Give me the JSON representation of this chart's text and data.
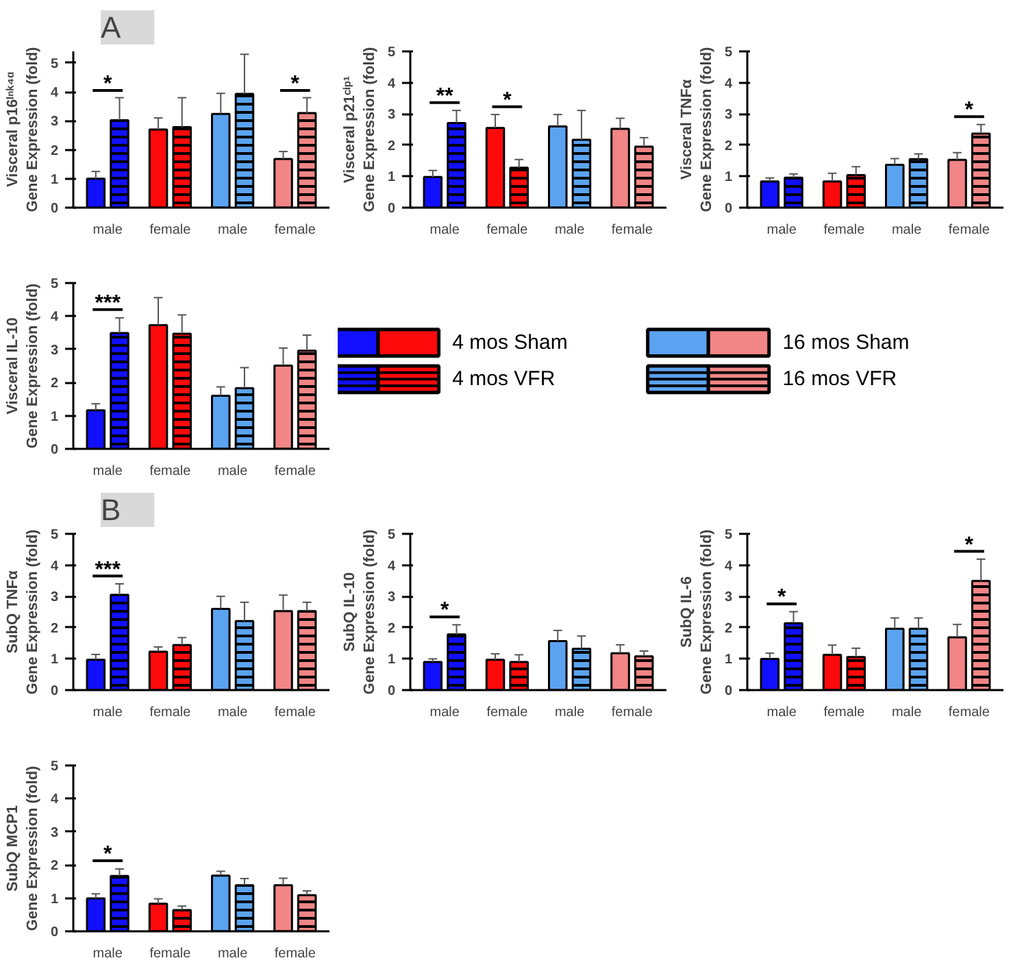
{
  "chart_data": [
    {
      "type": "bar",
      "ylabel": "Visceral p16ᴵⁿᵏ⁴ᵅ\nGene Expression (fold)",
      "categories": [
        "male",
        "female",
        "male",
        "female"
      ],
      "ylim": [
        0,
        5.4
      ],
      "yticks": [
        0,
        1,
        2,
        3,
        4,
        5
      ],
      "annotations": [
        "A",
        "*",
        "*"
      ],
      "series": [
        {
          "colors": [
            "#1010ff",
            "#ff0a0a",
            null,
            null
          ],
          "values": [
            1.0,
            2.7,
            null,
            null
          ],
          "errors": [
            0.25,
            0.4,
            null,
            null
          ]
        },
        {
          "colors": [
            "#1010ff",
            "#ff0a0a",
            null,
            null
          ],
          "values": [
            3.02,
            2.78,
            null,
            null
          ],
          "errors": [
            0.78,
            1.02,
            null,
            null
          ]
        },
        {
          "colors": [
            null,
            null,
            "#5ba3f0",
            "#f28585"
          ],
          "values": [
            null,
            null,
            3.24,
            1.68
          ],
          "errors": [
            null,
            null,
            0.71,
            0.26
          ]
        },
        {
          "colors": [
            null,
            null,
            "#5ba3f0",
            "#f28585"
          ],
          "values": [
            null,
            null,
            3.93,
            3.27
          ],
          "errors": [
            null,
            null,
            1.37,
            0.53
          ]
        }
      ]
    },
    {
      "type": "bar",
      "ylabel": "Visceral p21ᶜⁱᵖ¹\nGene Expression (fold)",
      "categories": [
        "male",
        "female",
        "male",
        "female"
      ],
      "ylim": [
        0,
        5
      ],
      "yticks": [
        0,
        1,
        2,
        3,
        4,
        5
      ],
      "annotations": [
        "**",
        "*"
      ],
      "series": [
        {
          "colors": [
            "#1010ff",
            "#ff0a0a",
            null,
            null
          ],
          "values": [
            0.98,
            2.55,
            null,
            null
          ],
          "errors": [
            0.21,
            0.43,
            null,
            null
          ]
        },
        {
          "colors": [
            "#1010ff",
            "#ff0a0a",
            null,
            null
          ],
          "values": [
            2.71,
            1.28,
            null,
            null
          ],
          "errors": [
            0.4,
            0.26,
            null,
            null
          ]
        },
        {
          "colors": [
            null,
            null,
            "#5ba3f0",
            "#f28585"
          ],
          "values": [
            null,
            null,
            2.6,
            2.52
          ],
          "errors": [
            null,
            null,
            0.38,
            0.34
          ]
        },
        {
          "colors": [
            null,
            null,
            "#5ba3f0",
            "#f28585"
          ],
          "values": [
            null,
            null,
            2.17,
            1.95
          ],
          "errors": [
            null,
            null,
            0.94,
            0.29
          ]
        }
      ]
    },
    {
      "type": "bar",
      "ylabel": "Visceral TNFα\nGene Expression (fold)",
      "categories": [
        "male",
        "female",
        "male",
        "female"
      ],
      "ylim": [
        0,
        5
      ],
      "yticks": [
        0,
        1,
        2,
        3,
        4,
        5
      ],
      "annotations": [
        "*"
      ],
      "series": [
        {
          "colors": [
            "#1010ff",
            "#ff0a0a",
            null,
            null
          ],
          "values": [
            0.84,
            0.84,
            null,
            null
          ],
          "errors": [
            0.11,
            0.26,
            null,
            null
          ]
        },
        {
          "colors": [
            "#1010ff",
            "#ff0a0a",
            null,
            null
          ],
          "values": [
            0.96,
            1.04,
            null,
            null
          ],
          "errors": [
            0.12,
            0.27,
            null,
            null
          ]
        },
        {
          "colors": [
            null,
            null,
            "#5ba3f0",
            "#f28585"
          ],
          "values": [
            null,
            null,
            1.37,
            1.53
          ],
          "errors": [
            null,
            null,
            0.2,
            0.23
          ]
        },
        {
          "colors": [
            null,
            null,
            "#5ba3f0",
            "#f28585"
          ],
          "values": [
            null,
            null,
            1.55,
            2.37
          ],
          "errors": [
            null,
            null,
            0.17,
            0.29
          ]
        }
      ]
    },
    {
      "type": "bar",
      "ylabel": "Visceral IL-10\nGene Expression (fold)",
      "categories": [
        "male",
        "female",
        "male",
        "female"
      ],
      "ylim": [
        0,
        5
      ],
      "yticks": [
        0,
        1,
        2,
        3,
        4,
        5
      ],
      "legend": "right",
      "annotations": [
        "***"
      ],
      "series": [
        {
          "name": "4 mos Sham",
          "colors": [
            "#1010ff",
            "#ff0a0a",
            null,
            null
          ],
          "values": [
            1.16,
            3.73,
            null,
            null
          ],
          "errors": [
            0.2,
            0.83,
            null,
            null
          ]
        },
        {
          "name": "4 mos VFR",
          "colors": [
            "#1010ff",
            "#ff0a0a",
            null,
            null
          ],
          "values": [
            3.49,
            3.47,
            null,
            null
          ],
          "errors": [
            0.46,
            0.57,
            null,
            null
          ]
        },
        {
          "name": "16 mos Sham",
          "colors": [
            null,
            null,
            "#5ba3f0",
            "#f28585"
          ],
          "values": [
            null,
            null,
            1.6,
            2.51
          ],
          "errors": [
            null,
            null,
            0.27,
            0.53
          ]
        },
        {
          "name": "16 mos VFR",
          "colors": [
            null,
            null,
            "#5ba3f0",
            "#f28585"
          ],
          "values": [
            null,
            null,
            1.83,
            2.96
          ],
          "errors": [
            null,
            null,
            0.62,
            0.47
          ]
        }
      ]
    },
    {
      "type": "bar",
      "ylabel": "SubQ TNFα\nGene Expression (fold)",
      "categories": [
        "male",
        "female",
        "male",
        "female"
      ],
      "ylim": [
        0,
        5
      ],
      "yticks": [
        0,
        1,
        2,
        3,
        4,
        5
      ],
      "annotations": [
        "B",
        "***"
      ],
      "series": [
        {
          "colors": [
            "#1010ff",
            "#ff0a0a",
            null,
            null
          ],
          "values": [
            0.97,
            1.23,
            null,
            null
          ],
          "errors": [
            0.17,
            0.15,
            null,
            null
          ]
        },
        {
          "colors": [
            "#1010ff",
            "#ff0a0a",
            null,
            null
          ],
          "values": [
            3.05,
            1.44,
            null,
            null
          ],
          "errors": [
            0.35,
            0.24,
            null,
            null
          ]
        },
        {
          "colors": [
            null,
            null,
            "#5ba3f0",
            "#f28585"
          ],
          "values": [
            null,
            null,
            2.6,
            2.53
          ],
          "errors": [
            null,
            null,
            0.4,
            0.51
          ]
        },
        {
          "colors": [
            null,
            null,
            "#5ba3f0",
            "#f28585"
          ],
          "values": [
            null,
            null,
            2.21,
            2.53
          ],
          "errors": [
            null,
            null,
            0.6,
            0.28
          ]
        }
      ]
    },
    {
      "type": "bar",
      "ylabel": "SubQ IL-10\nGene Expression (fold)",
      "categories": [
        "male",
        "female",
        "male",
        "female"
      ],
      "ylim": [
        0,
        5
      ],
      "yticks": [
        0,
        1,
        2,
        3,
        4,
        5
      ],
      "annotations": [
        "*"
      ],
      "series": [
        {
          "colors": [
            "#1010ff",
            "#ff0a0a",
            null,
            null
          ],
          "values": [
            0.9,
            0.97,
            null,
            null
          ],
          "errors": [
            0.1,
            0.19,
            null,
            null
          ]
        },
        {
          "colors": [
            "#1010ff",
            "#ff0a0a",
            null,
            null
          ],
          "values": [
            1.78,
            0.9,
            null,
            null
          ],
          "errors": [
            0.31,
            0.23,
            null,
            null
          ]
        },
        {
          "colors": [
            null,
            null,
            "#5ba3f0",
            "#f28585"
          ],
          "values": [
            null,
            null,
            1.57,
            1.18
          ],
          "errors": [
            null,
            null,
            0.34,
            0.27
          ]
        },
        {
          "colors": [
            null,
            null,
            "#5ba3f0",
            "#f28585"
          ],
          "values": [
            null,
            null,
            1.32,
            1.08
          ],
          "errors": [
            null,
            null,
            0.41,
            0.17
          ]
        }
      ]
    },
    {
      "type": "bar",
      "ylabel": "SubQ IL-6\nGene Expression (fold)",
      "categories": [
        "male",
        "female",
        "male",
        "female"
      ],
      "ylim": [
        0,
        5
      ],
      "yticks": [
        0,
        1,
        2,
        3,
        4,
        5
      ],
      "annotations": [
        "*",
        "*"
      ],
      "series": [
        {
          "colors": [
            "#1010ff",
            "#ff0a0a",
            null,
            null
          ],
          "values": [
            1.0,
            1.13,
            null,
            null
          ],
          "errors": [
            0.18,
            0.31,
            null,
            null
          ]
        },
        {
          "colors": [
            "#1010ff",
            "#ff0a0a",
            null,
            null
          ],
          "values": [
            2.14,
            1.06,
            null,
            null
          ],
          "errors": [
            0.37,
            0.28,
            null,
            null
          ]
        },
        {
          "colors": [
            null,
            null,
            "#5ba3f0",
            "#f28585"
          ],
          "values": [
            null,
            null,
            1.96,
            1.69
          ],
          "errors": [
            null,
            null,
            0.35,
            0.41
          ]
        },
        {
          "colors": [
            null,
            null,
            "#5ba3f0",
            "#f28585"
          ],
          "values": [
            null,
            null,
            1.96,
            3.49
          ],
          "errors": [
            null,
            null,
            0.35,
            0.7
          ]
        }
      ]
    },
    {
      "type": "bar",
      "ylabel": "SubQ MCP1\nGene Expression (fold)",
      "categories": [
        "male",
        "female",
        "male",
        "female"
      ],
      "ylim": [
        0,
        5
      ],
      "yticks": [
        0,
        1,
        2,
        3,
        4,
        5
      ],
      "annotations": [
        "*"
      ],
      "series": [
        {
          "colors": [
            "#1010ff",
            "#ff0a0a",
            null,
            null
          ],
          "values": [
            0.99,
            0.83,
            null,
            null
          ],
          "errors": [
            0.14,
            0.15,
            null,
            null
          ]
        },
        {
          "colors": [
            "#1010ff",
            "#ff0a0a",
            null,
            null
          ],
          "values": [
            1.67,
            0.64,
            null,
            null
          ],
          "errors": [
            0.21,
            0.12,
            null,
            null
          ]
        },
        {
          "colors": [
            null,
            null,
            "#5ba3f0",
            "#f28585"
          ],
          "values": [
            null,
            null,
            1.68,
            1.39
          ],
          "errors": [
            null,
            null,
            0.13,
            0.21
          ]
        },
        {
          "colors": [
            null,
            null,
            "#5ba3f0",
            "#f28585"
          ],
          "values": [
            null,
            null,
            1.39,
            1.09
          ],
          "errors": [
            null,
            null,
            0.2,
            0.13
          ]
        }
      ]
    }
  ]
}
